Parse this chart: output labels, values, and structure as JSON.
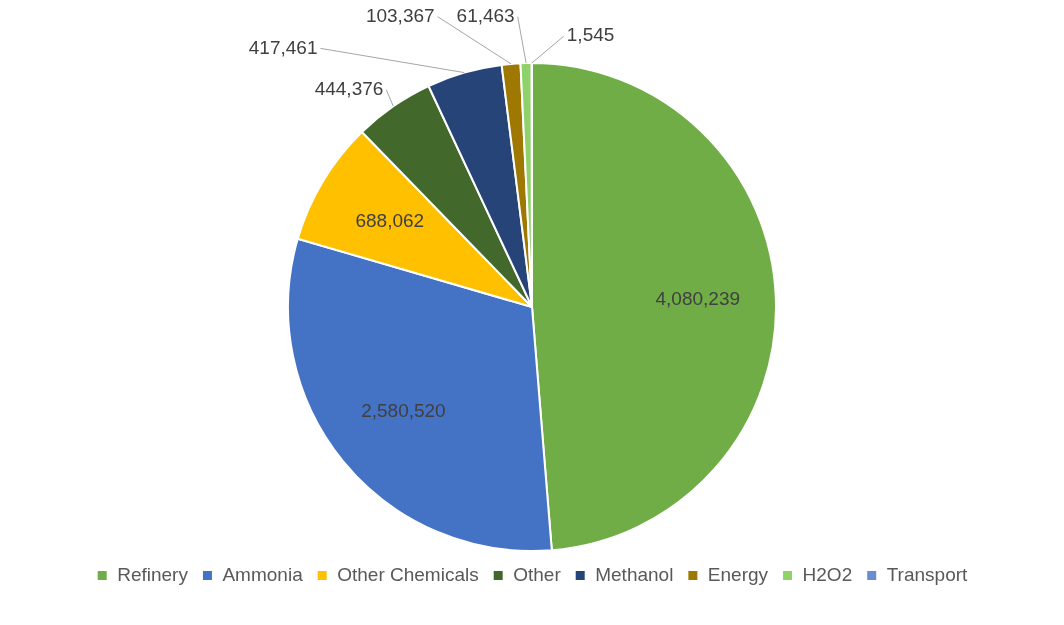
{
  "chart_data": {
    "type": "pie",
    "categories": [
      "Refinery",
      "Ammonia",
      "Other Chemicals",
      "Other",
      "Methanol",
      "Energy",
      "H2O2",
      "Transport"
    ],
    "values": [
      4080239,
      2580520,
      688062,
      444376,
      417461,
      103367,
      61463,
      1545
    ],
    "colors": [
      "#70ad47",
      "#4472c4",
      "#ffc000",
      "#43682b",
      "#264478",
      "#9e7800",
      "#8fd16a",
      "#698ed0"
    ],
    "value_labels": [
      "4,080,239",
      "2,580,520",
      "688,062",
      "444,376",
      "417,461",
      "103,367",
      "61,463",
      "1,545"
    ],
    "legend": "bottom"
  }
}
